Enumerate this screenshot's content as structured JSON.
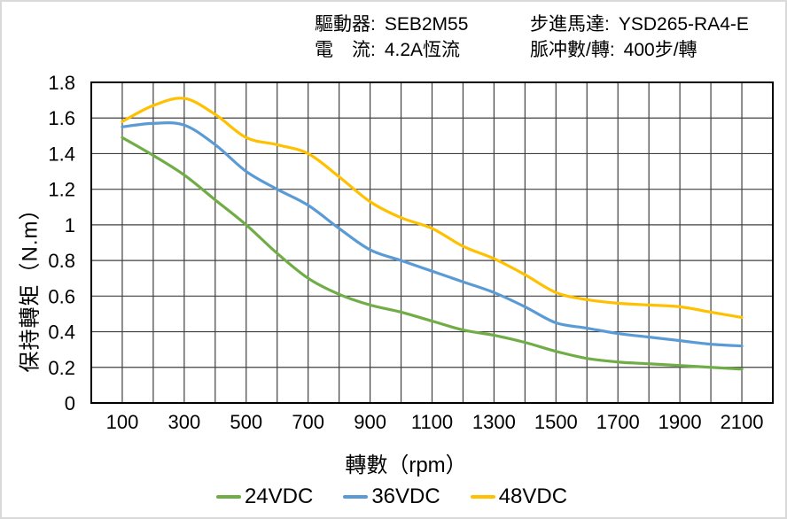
{
  "header": {
    "driver_label": "驅動器:",
    "driver_value": "SEB2M55",
    "current_label": "電　流:",
    "current_value": "4.2A恆流",
    "motor_label": "步進馬達:",
    "motor_value": "YSD265-RA4-E",
    "pulse_label": "脈冲數/轉:",
    "pulse_value": "400步/轉"
  },
  "chart_data": {
    "type": "line",
    "title": "",
    "xlabel": "轉數（rpm）",
    "ylabel": "保持轉矩（N.m）",
    "xlim": [
      0,
      2200
    ],
    "ylim": [
      0,
      1.8
    ],
    "x_grid_step": 100,
    "y_grid_step": 0.2,
    "grid": true,
    "legend_position": "bottom",
    "x": [
      100,
      200,
      300,
      400,
      500,
      600,
      700,
      800,
      900,
      1000,
      1100,
      1200,
      1300,
      1400,
      1500,
      1600,
      1700,
      1800,
      1900,
      2000,
      2100
    ],
    "x_ticks": [
      100,
      300,
      500,
      700,
      900,
      1100,
      1300,
      1500,
      1700,
      1900,
      2100
    ],
    "y_ticks": [
      0,
      0.2,
      0.4,
      0.6,
      0.8,
      1,
      1.2,
      1.4,
      1.6,
      1.8
    ],
    "y_tick_labels": [
      "0",
      "0.2",
      "0.4",
      "0.6",
      "0.8",
      "1",
      "1.2",
      "1.4",
      "1.6",
      "1.8"
    ],
    "series": [
      {
        "name": "24VDC",
        "color": "#70AD47",
        "values": [
          1.49,
          1.39,
          1.28,
          1.14,
          1.0,
          0.84,
          0.7,
          0.61,
          0.55,
          0.51,
          0.46,
          0.41,
          0.38,
          0.34,
          0.29,
          0.25,
          0.23,
          0.22,
          0.21,
          0.2,
          0.19
        ]
      },
      {
        "name": "36VDC",
        "color": "#5B9BD5",
        "values": [
          1.55,
          1.57,
          1.56,
          1.45,
          1.3,
          1.2,
          1.11,
          0.98,
          0.86,
          0.8,
          0.74,
          0.68,
          0.62,
          0.54,
          0.45,
          0.42,
          0.39,
          0.37,
          0.35,
          0.33,
          0.32
        ]
      },
      {
        "name": "48VDC",
        "color": "#FFC000",
        "values": [
          1.58,
          1.67,
          1.71,
          1.62,
          1.49,
          1.45,
          1.4,
          1.27,
          1.13,
          1.04,
          0.98,
          0.88,
          0.81,
          0.72,
          0.62,
          0.58,
          0.56,
          0.55,
          0.54,
          0.51,
          0.48
        ]
      }
    ],
    "colors": {
      "grid": "#404040",
      "plot_border": "#000000",
      "text": "#000000",
      "frame_border": "#d9d9d9"
    }
  }
}
